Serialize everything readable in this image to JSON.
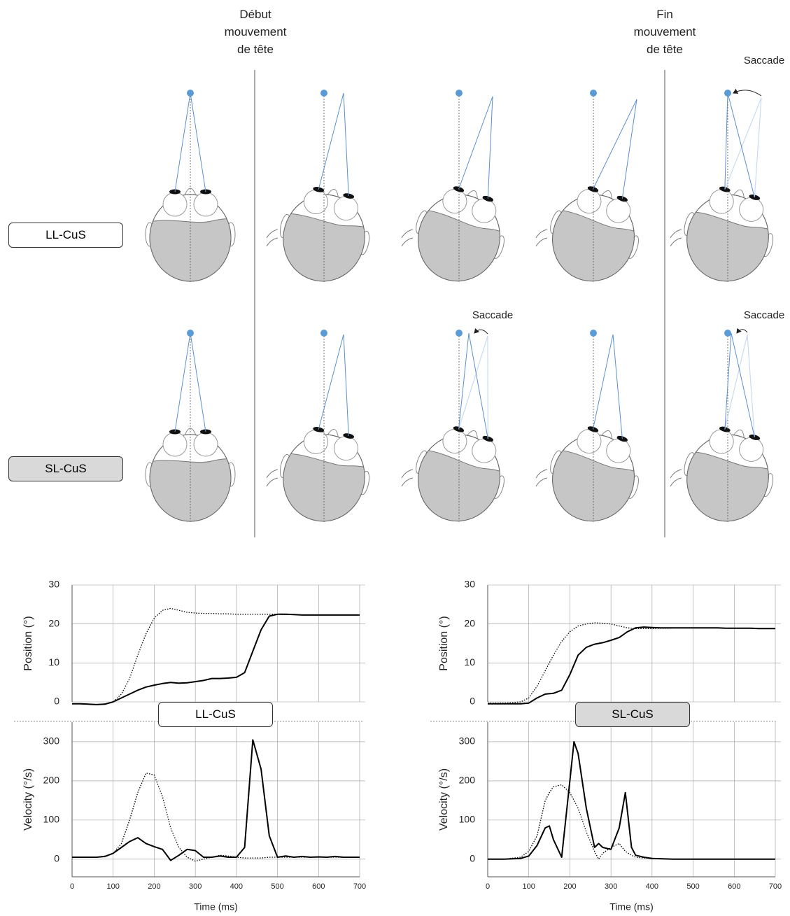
{
  "header": {
    "start": "Début\nmouvement\nde tête",
    "end": "Fin\nmouvement\nde tête"
  },
  "saccade_labels": [
    "Saccade",
    "Saccade",
    "Saccade"
  ],
  "conditions": [
    "LL-CuS",
    "SL-CuS"
  ],
  "chart_data": [
    {
      "type": "line",
      "label": "LL-CuS",
      "ylabel": "Position (°)",
      "xlim": [
        0,
        700
      ],
      "ylim": [
        0,
        30
      ],
      "yticks": [
        0,
        10,
        20,
        30
      ],
      "grid": true,
      "x": [
        0,
        20,
        40,
        60,
        80,
        100,
        120,
        140,
        160,
        180,
        200,
        220,
        240,
        260,
        280,
        300,
        320,
        340,
        360,
        380,
        400,
        420,
        440,
        460,
        480,
        500,
        520,
        540,
        560,
        580,
        600,
        620,
        640,
        660,
        680,
        700
      ],
      "series": [
        {
          "color": "#000000",
          "style": "solid",
          "values": [
            -0.5,
            -0.5,
            -0.6,
            -0.7,
            -0.6,
            0,
            1,
            2,
            3,
            3.8,
            4.3,
            4.7,
            5,
            4.8,
            4.9,
            5.2,
            5.5,
            6,
            6,
            6.1,
            6.3,
            7.5,
            13,
            18.5,
            22,
            22.5,
            22.5,
            22.4,
            22.3,
            22.3,
            22.3,
            22.3,
            22.3,
            22.3,
            22.3,
            22.3
          ]
        },
        {
          "color": "#000000",
          "style": "dotted",
          "values": [
            -0.5,
            -0.5,
            -0.6,
            -0.7,
            -0.5,
            0,
            2,
            6,
            12,
            17.5,
            21.5,
            23.5,
            24,
            23.5,
            23,
            22.8,
            22.7,
            22.7,
            22.6,
            22.6,
            22.5,
            22.5,
            22.5,
            22.5,
            22.5,
            22.5,
            22.4,
            22.4,
            22.3,
            22.3,
            22.3,
            22.3,
            22.3,
            22.3,
            22.3,
            22.3
          ]
        }
      ]
    },
    {
      "type": "line",
      "ylabel": "Velocity (°/s)",
      "xlabel": "Time (ms)",
      "xlim": [
        0,
        700
      ],
      "ylim": [
        -45,
        350
      ],
      "xticks": [
        0,
        100,
        200,
        300,
        400,
        500,
        600,
        700
      ],
      "yticks": [
        0,
        100,
        200,
        300
      ],
      "grid": true,
      "x": [
        0,
        20,
        40,
        60,
        80,
        100,
        120,
        140,
        160,
        180,
        200,
        220,
        240,
        260,
        280,
        300,
        320,
        340,
        360,
        380,
        400,
        420,
        440,
        460,
        480,
        500,
        520,
        540,
        560,
        580,
        600,
        620,
        640,
        660,
        680,
        700
      ],
      "series": [
        {
          "color": "#000000",
          "style": "solid",
          "values": [
            5,
            5,
            5,
            5,
            7,
            15,
            30,
            45,
            55,
            40,
            32,
            25,
            -3,
            10,
            25,
            22,
            5,
            5,
            8,
            5,
            5,
            30,
            305,
            230,
            60,
            5,
            8,
            5,
            7,
            5,
            6,
            5,
            7,
            5,
            5,
            5
          ]
        },
        {
          "color": "#000000",
          "style": "dotted",
          "values": [
            5,
            5,
            5,
            5,
            8,
            15,
            40,
            100,
            170,
            220,
            215,
            160,
            80,
            30,
            5,
            -5,
            0,
            5,
            10,
            8,
            5,
            3,
            3,
            3,
            5,
            5,
            5,
            5,
            5,
            5,
            5,
            5,
            5,
            5,
            5,
            5
          ]
        }
      ]
    },
    {
      "type": "line",
      "label": "SL-CuS",
      "ylabel": "Position (°)",
      "xlim": [
        0,
        700
      ],
      "ylim": [
        0,
        30
      ],
      "yticks": [
        0,
        10,
        20,
        30
      ],
      "grid": true,
      "x": [
        0,
        20,
        40,
        60,
        80,
        100,
        120,
        140,
        160,
        180,
        200,
        220,
        240,
        260,
        280,
        300,
        320,
        340,
        360,
        380,
        400,
        420,
        440,
        460,
        480,
        500,
        520,
        540,
        560,
        580,
        600,
        620,
        640,
        660,
        680,
        700
      ],
      "series": [
        {
          "color": "#000000",
          "style": "solid",
          "values": [
            -0.5,
            -0.5,
            -0.5,
            -0.5,
            -0.5,
            -0.3,
            1,
            2,
            2.2,
            3,
            7,
            12,
            14,
            14.8,
            15.2,
            15.8,
            16.5,
            18,
            19,
            19.2,
            19.1,
            19,
            19,
            19,
            19,
            19,
            19,
            19,
            19,
            18.9,
            18.9,
            18.9,
            18.9,
            18.8,
            18.8,
            18.8
          ]
        },
        {
          "color": "#000000",
          "style": "dotted",
          "values": [
            -0.3,
            -0.3,
            -0.3,
            -0.2,
            0,
            1,
            4,
            8,
            12,
            15.5,
            18,
            19.5,
            20,
            20.3,
            20.2,
            20,
            19.5,
            19,
            18.8,
            18.8,
            18.8,
            18.9,
            18.9,
            19,
            19,
            19,
            19,
            19,
            19,
            18.9,
            18.9,
            18.9,
            18.9,
            18.8,
            18.8,
            18.8
          ]
        }
      ]
    },
    {
      "type": "line",
      "ylabel": "Velocity (°/s)",
      "xlabel": "Time (ms)",
      "xlim": [
        0,
        700
      ],
      "ylim": [
        -45,
        350
      ],
      "xticks": [
        0,
        100,
        200,
        300,
        400,
        500,
        600,
        700
      ],
      "yticks": [
        0,
        100,
        200,
        300
      ],
      "grid": true,
      "x": [
        0,
        40,
        80,
        100,
        120,
        140,
        150,
        160,
        180,
        200,
        210,
        220,
        240,
        260,
        270,
        280,
        300,
        320,
        335,
        350,
        360,
        380,
        400,
        450,
        500,
        550,
        600,
        650,
        700
      ],
      "series": [
        {
          "color": "#000000",
          "style": "solid",
          "values": [
            0,
            0,
            2,
            8,
            35,
            80,
            85,
            50,
            5,
            200,
            300,
            270,
            130,
            30,
            40,
            30,
            25,
            80,
            170,
            30,
            10,
            5,
            2,
            0,
            0,
            0,
            0,
            0,
            0
          ]
        },
        {
          "color": "#000000",
          "style": "dotted",
          "values": [
            0,
            0,
            5,
            20,
            60,
            150,
            170,
            185,
            190,
            170,
            150,
            130,
            70,
            20,
            0,
            15,
            30,
            40,
            20,
            10,
            5,
            3,
            2,
            0,
            0,
            0,
            0,
            0,
            0
          ]
        }
      ]
    }
  ]
}
